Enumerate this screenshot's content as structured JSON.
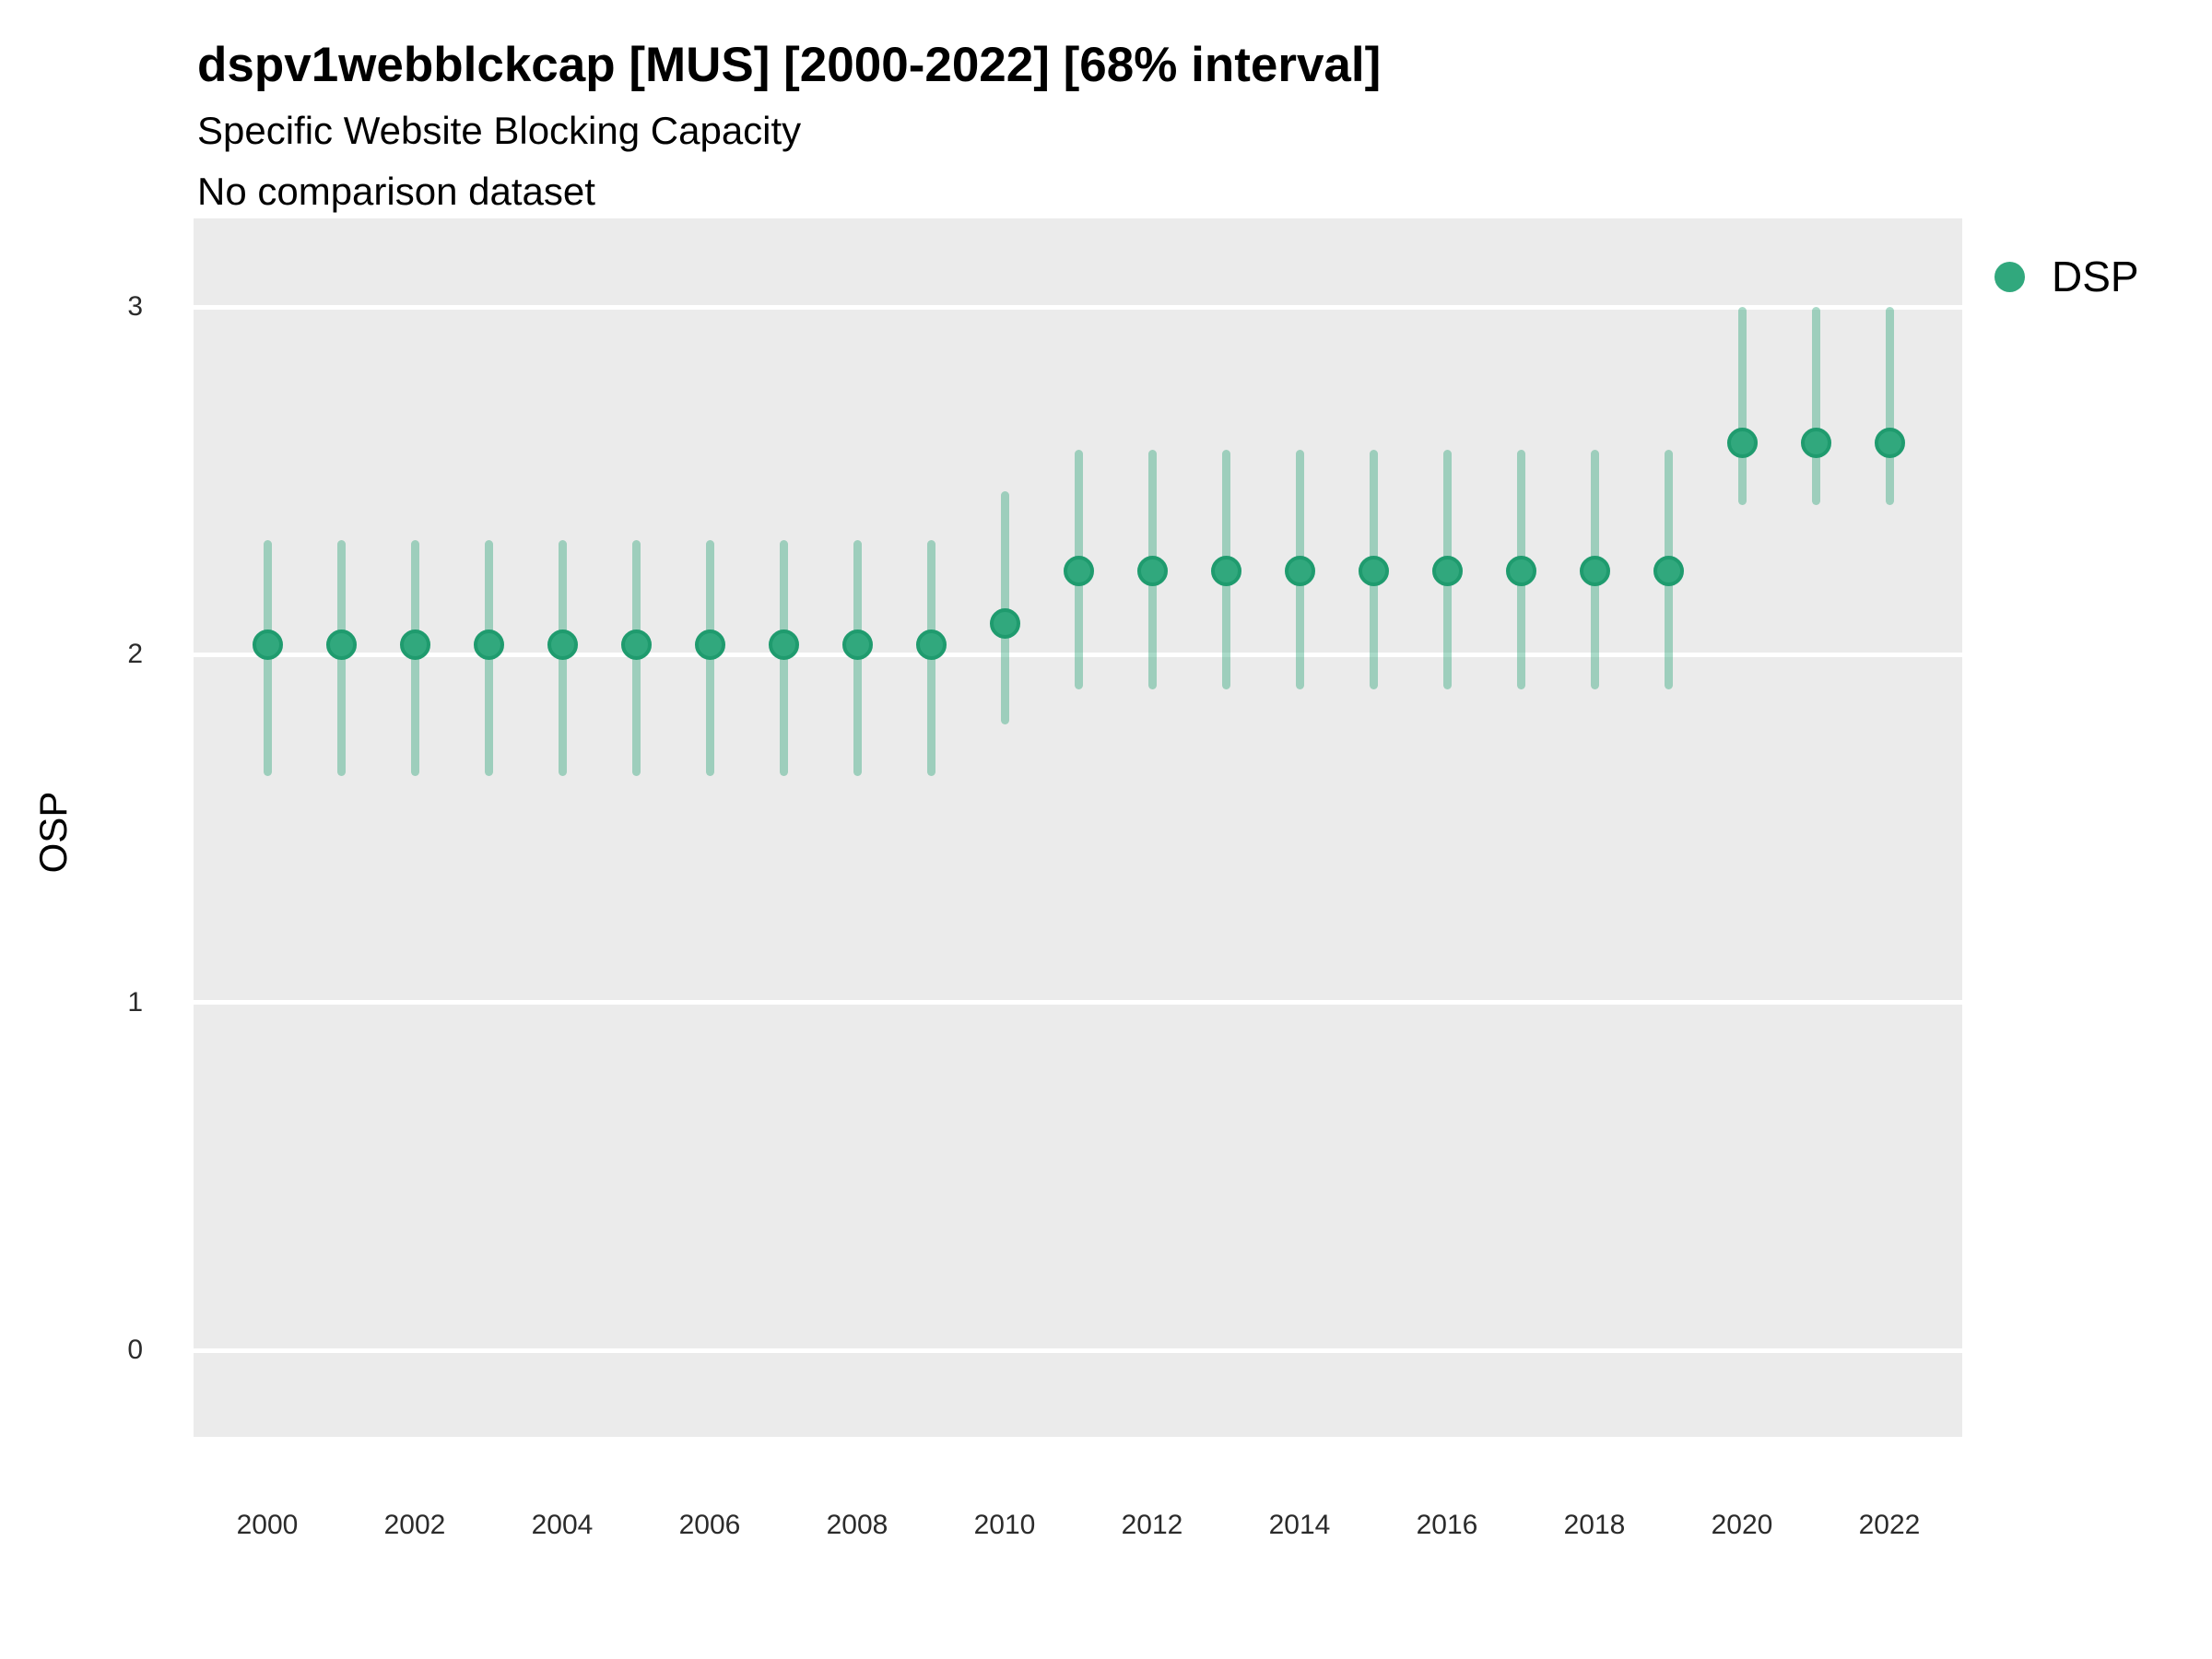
{
  "header": {
    "title": "dspv1webblckcap [MUS] [2000-2022] [68% interval]",
    "subtitle": "Specific Website Blocking Capacity",
    "note": "No comparison dataset"
  },
  "legend": {
    "label": "DSP",
    "position": "right"
  },
  "colors": {
    "point_fill": "#31a87d",
    "point_stroke": "#1f9b6e",
    "interval": "rgba(49, 168, 125, 0.42)",
    "panel_background": "#EBEBEB",
    "gridline": "#ffffff",
    "text": "#000000",
    "tick_text": "#2b2b2b"
  },
  "chart_data": {
    "type": "scatter",
    "subtype": "pointrange",
    "title": "dspv1webblckcap [MUS] [2000-2022] [68% interval]",
    "subtitle": "Specific Website Blocking Capacity",
    "note": "No comparison dataset",
    "xlabel": "",
    "ylabel": "OSP",
    "interval_level": "68%",
    "x": [
      2000,
      2001,
      2002,
      2003,
      2004,
      2005,
      2006,
      2007,
      2008,
      2009,
      2010,
      2011,
      2012,
      2013,
      2014,
      2015,
      2016,
      2017,
      2018,
      2019,
      2020,
      2021,
      2022
    ],
    "series": [
      {
        "name": "DSP",
        "estimates": [
          2.03,
          2.03,
          2.03,
          2.03,
          2.03,
          2.03,
          2.03,
          2.03,
          2.03,
          2.03,
          2.09,
          2.24,
          2.24,
          2.24,
          2.24,
          2.24,
          2.24,
          2.24,
          2.24,
          2.24,
          2.61,
          2.61,
          2.61
        ],
        "lower": [
          1.65,
          1.65,
          1.65,
          1.65,
          1.65,
          1.65,
          1.65,
          1.65,
          1.65,
          1.65,
          1.8,
          1.9,
          1.9,
          1.9,
          1.9,
          1.9,
          1.9,
          1.9,
          1.9,
          1.9,
          2.43,
          2.43,
          2.43
        ],
        "upper": [
          2.33,
          2.33,
          2.33,
          2.33,
          2.33,
          2.33,
          2.33,
          2.33,
          2.33,
          2.33,
          2.47,
          2.59,
          2.59,
          2.59,
          2.59,
          2.59,
          2.59,
          2.59,
          2.59,
          2.59,
          3.0,
          3.0,
          3.0
        ]
      }
    ],
    "x_tick_labels": [
      "2000",
      "2002",
      "2004",
      "2006",
      "2008",
      "2010",
      "2012",
      "2014",
      "2016",
      "2018",
      "2020",
      "2022"
    ],
    "y_ticks": [
      0,
      1,
      2,
      3
    ],
    "ylim": [
      -0.25,
      3.25
    ],
    "grid": "major-horizontal-white",
    "legend_position": "right",
    "legend_entries": [
      "DSP"
    ]
  }
}
